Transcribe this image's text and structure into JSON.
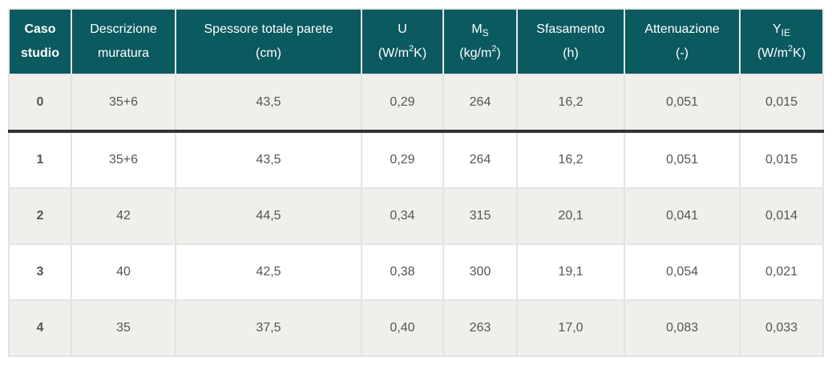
{
  "headers": [
    {
      "line1": "Caso",
      "line2": "studio"
    },
    {
      "line1": "Descrizione",
      "line2": "muratura"
    },
    {
      "line1": "Spessore totale parete",
      "line2": "(cm)"
    },
    {
      "line1": "U",
      "line2_pre": "(W/m",
      "line2_sup": "2",
      "line2_post": "K)"
    },
    {
      "line1_main": "M",
      "line1_sub": "S",
      "line2_pre": "(kg/m",
      "line2_sup": "2",
      "line2_post": ")"
    },
    {
      "line1": "Sfasamento",
      "line2": "(h)"
    },
    {
      "line1": "Attenuazione",
      "line2": "(-)"
    },
    {
      "line1_main": "Y",
      "line1_sub": "IE",
      "line2_pre": "(W/m",
      "line2_sup": "2",
      "line2_post": "K)"
    }
  ],
  "rows": [
    [
      "0",
      "35+6",
      "43,5",
      "0,29",
      "264",
      "16,2",
      "0,051",
      "0,015"
    ],
    [
      "1",
      "35+6",
      "43,5",
      "0,29",
      "264",
      "16,2",
      "0,051",
      "0,015"
    ],
    [
      "2",
      "42",
      "44,5",
      "0,34",
      "315",
      "20,1",
      "0,041",
      "0,014"
    ],
    [
      "3",
      "40",
      "42,5",
      "0,38",
      "300",
      "19,1",
      "0,054",
      "0,021"
    ],
    [
      "4",
      "35",
      "37,5",
      "0,40",
      "263",
      "17,0",
      "0,083",
      "0,033"
    ]
  ],
  "colors": {
    "header_bg": "#0b5a60",
    "row_gray": "#f0efeb",
    "separator": "#333333"
  }
}
